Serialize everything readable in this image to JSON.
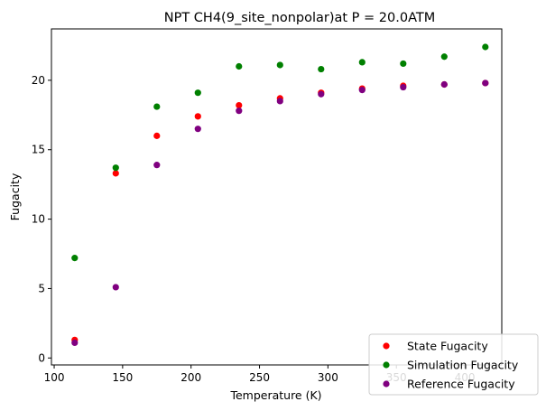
{
  "chart_data": {
    "type": "scatter",
    "title": "NPT CH4(9_site_nonpolar)at P = 20.0ATM",
    "xlabel": "Temperature (K)",
    "ylabel": "Fugacity",
    "xlim": [
      98,
      427
    ],
    "ylim": [
      -0.5,
      23.7
    ],
    "xticks": [
      100,
      150,
      200,
      250,
      300,
      350,
      400
    ],
    "yticks": [
      0,
      5,
      10,
      15,
      20
    ],
    "grid": false,
    "legend_position": "bottom-right",
    "series": [
      {
        "name": "State Fugacity",
        "color": "#ff0000",
        "x": [
          115,
          145,
          175,
          205,
          235,
          265,
          295,
          325,
          355,
          385,
          415
        ],
        "y": [
          1.3,
          13.3,
          16.0,
          17.4,
          18.2,
          18.7,
          19.1,
          19.4,
          19.6,
          19.7,
          19.8
        ]
      },
      {
        "name": "Simulation Fugacity",
        "color": "#008000",
        "x": [
          115,
          145,
          175,
          205,
          235,
          265,
          295,
          325,
          355,
          385,
          415
        ],
        "y": [
          7.2,
          13.7,
          18.1,
          19.1,
          21.0,
          21.1,
          20.8,
          21.3,
          21.2,
          21.7,
          22.4
        ]
      },
      {
        "name": "Reference Fugacity",
        "color": "#800080",
        "x": [
          115,
          145,
          175,
          205,
          235,
          265,
          295,
          325,
          355,
          385,
          415
        ],
        "y": [
          1.1,
          5.1,
          13.9,
          16.5,
          17.8,
          18.5,
          19.0,
          19.3,
          19.5,
          19.7,
          19.8
        ]
      }
    ]
  }
}
